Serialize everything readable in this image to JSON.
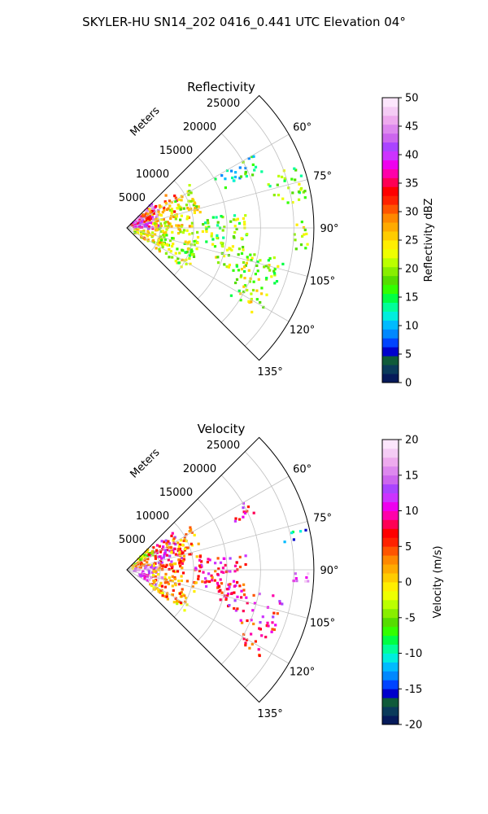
{
  "suptitle": "SKYLER-HU  SN14_202  0416_0.441 UTC Elevation 04°",
  "colors": {
    "grid": "#c0c0c0",
    "frame": "#000000",
    "background": "#ffffff"
  },
  "chart_data": [
    {
      "type": "heatmap",
      "subtype": "polar-ppi-sector",
      "title": "Reflectivity",
      "radial_axis_label": "Meters",
      "r_ticks": [
        "5000",
        "10000",
        "15000",
        "20000",
        "25000"
      ],
      "r_tick_values": [
        5000,
        10000,
        15000,
        20000,
        25000
      ],
      "rlim": [
        0,
        28000
      ],
      "theta_ticks": [
        "60°",
        "75°",
        "90°",
        "105°",
        "120°",
        "135°"
      ],
      "theta_tick_values": [
        60,
        75,
        90,
        105,
        120,
        135
      ],
      "theta_range_deg": [
        45,
        135
      ],
      "grid": true,
      "colorbar": {
        "label": "Reflectivity dBZ",
        "ticks": [
          "0",
          "5",
          "10",
          "15",
          "20",
          "25",
          "30",
          "35",
          "40",
          "45",
          "50"
        ],
        "range": [
          0,
          50
        ],
        "colormap": [
          "#061a5a",
          "#0a3a5a",
          "#0f5a3a",
          "#0000cc",
          "#0044ff",
          "#0088ff",
          "#00bbff",
          "#00eedd",
          "#00ff99",
          "#00ff44",
          "#33ff00",
          "#55dd00",
          "#88ee00",
          "#bbff00",
          "#eeff00",
          "#ffee00",
          "#ffcc00",
          "#ffaa00",
          "#ff8800",
          "#ff5500",
          "#ff2200",
          "#ff0000",
          "#ff0055",
          "#ff00aa",
          "#ee00ee",
          "#cc33ff",
          "#aa44ff",
          "#cc66ee",
          "#dd88ee",
          "#eeaaee",
          "#f5ccf5",
          "#fce6fc"
        ]
      },
      "echo_regions": [
        {
          "az": [
            46,
            68
          ],
          "r": [
            800,
            5500
          ],
          "value": 40
        },
        {
          "az": [
            68,
            92
          ],
          "r": [
            800,
            5000
          ],
          "value": 38
        },
        {
          "az": [
            50,
            74
          ],
          "r": [
            3000,
            9000
          ],
          "value": 30
        },
        {
          "az": [
            55,
            78
          ],
          "r": [
            7000,
            11500
          ],
          "value": 22
        },
        {
          "az": [
            72,
            96
          ],
          "r": [
            4000,
            10000
          ],
          "value": 24
        },
        {
          "az": [
            96,
            124
          ],
          "r": [
            1000,
            6000
          ],
          "value": 24
        },
        {
          "az": [
            100,
            126
          ],
          "r": [
            5000,
            11000
          ],
          "value": 21
        },
        {
          "az": [
            82,
            102
          ],
          "r": [
            10000,
            18000
          ],
          "value": 19
        },
        {
          "az": [
            100,
            112
          ],
          "r": [
            14000,
            24000
          ],
          "value": 20
        },
        {
          "az": [
            112,
            124
          ],
          "r": [
            18000,
            24000
          ],
          "value": 21
        },
        {
          "az": [
            88,
            98
          ],
          "r": [
            24500,
            27500
          ],
          "value": 22
        },
        {
          "az": [
            70,
            82
          ],
          "r": [
            22000,
            27500
          ],
          "value": 18
        },
        {
          "az": [
            60,
            68
          ],
          "r": [
            15000,
            22000
          ],
          "value": 14
        }
      ]
    },
    {
      "type": "heatmap",
      "subtype": "polar-ppi-sector",
      "title": "Velocity",
      "radial_axis_label": "Meters",
      "r_ticks": [
        "5000",
        "10000",
        "15000",
        "20000",
        "25000"
      ],
      "r_tick_values": [
        5000,
        10000,
        15000,
        20000,
        25000
      ],
      "rlim": [
        0,
        28000
      ],
      "theta_ticks": [
        "60°",
        "75°",
        "90°",
        "105°",
        "120°",
        "135°"
      ],
      "theta_tick_values": [
        60,
        75,
        90,
        105,
        120,
        135
      ],
      "theta_range_deg": [
        45,
        135
      ],
      "grid": true,
      "colorbar": {
        "label": "Velocity (m/s)",
        "ticks": [
          "-20",
          "-15",
          "-10",
          "-5",
          "0",
          "5",
          "10",
          "15",
          "20"
        ],
        "range": [
          -20,
          20
        ],
        "colormap": [
          "#061a5a",
          "#0a3a5a",
          "#0f5a3a",
          "#0000cc",
          "#0044ff",
          "#0088ff",
          "#00bbff",
          "#00eedd",
          "#00ff99",
          "#00ff44",
          "#33ff00",
          "#55dd00",
          "#88ee00",
          "#bbff00",
          "#eeff00",
          "#ffee00",
          "#ffcc00",
          "#ffaa00",
          "#ff8800",
          "#ff5500",
          "#ff2200",
          "#ff0000",
          "#ff0055",
          "#ff00aa",
          "#ee00ee",
          "#cc33ff",
          "#aa44ff",
          "#cc66ee",
          "#dd88ee",
          "#eeaaee",
          "#f5ccf5",
          "#fce6fc"
        ]
      },
      "echo_regions": [
        {
          "az": [
            46,
            62
          ],
          "r": [
            800,
            5000
          ],
          "value": -2
        },
        {
          "az": [
            62,
            80
          ],
          "r": [
            800,
            4500
          ],
          "value": 4
        },
        {
          "az": [
            80,
            100
          ],
          "r": [
            800,
            4500
          ],
          "value": 15
        },
        {
          "az": [
            100,
            118
          ],
          "r": [
            2000,
            5500
          ],
          "value": 14
        },
        {
          "az": [
            50,
            80
          ],
          "r": [
            4000,
            9000
          ],
          "value": 9
        },
        {
          "az": [
            55,
            80
          ],
          "r": [
            7000,
            11500
          ],
          "value": 3
        },
        {
          "az": [
            80,
            100
          ],
          "r": [
            4000,
            9000
          ],
          "value": 3
        },
        {
          "az": [
            100,
            126
          ],
          "r": [
            4000,
            11000
          ],
          "value": 2
        },
        {
          "az": [
            82,
            102
          ],
          "r": [
            10000,
            18000
          ],
          "value": 8
        },
        {
          "az": [
            100,
            112
          ],
          "r": [
            14000,
            24000
          ],
          "value": 9
        },
        {
          "az": [
            112,
            124
          ],
          "r": [
            18000,
            24000
          ],
          "value": 6
        },
        {
          "az": [
            90,
            96
          ],
          "r": [
            25000,
            27500
          ],
          "value": 14
        },
        {
          "az": [
            76,
            80
          ],
          "r": [
            23500,
            27500
          ],
          "value": -12
        },
        {
          "az": [
            60,
            66
          ],
          "r": [
            17000,
            21000
          ],
          "value": 9
        }
      ]
    }
  ]
}
